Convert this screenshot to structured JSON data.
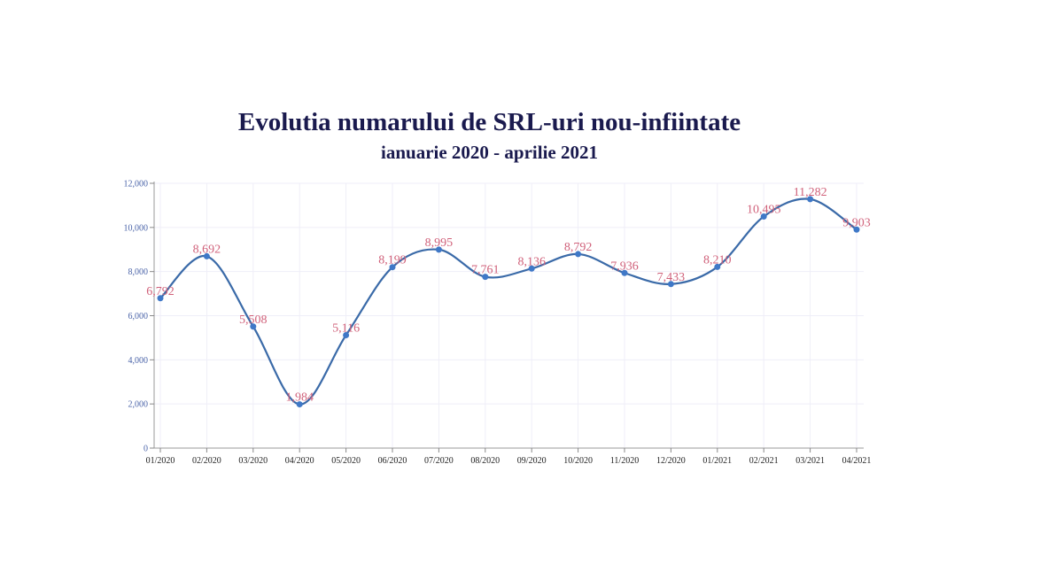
{
  "chart_data": {
    "type": "line",
    "title": "Evolutia numarului de SRL-uri nou-infiintate",
    "subtitle": "ianuarie 2020 - aprilie 2021",
    "xlabel": "",
    "ylabel": "",
    "categories": [
      "01/2020",
      "02/2020",
      "03/2020",
      "04/2020",
      "05/2020",
      "06/2020",
      "07/2020",
      "08/2020",
      "09/2020",
      "10/2020",
      "11/2020",
      "12/2020",
      "01/2021",
      "02/2021",
      "03/2021",
      "04/2021"
    ],
    "series": [
      {
        "name": "SRL-uri nou-infiintate",
        "values": [
          6792,
          8692,
          5508,
          1984,
          5116,
          8199,
          8995,
          7761,
          8136,
          8792,
          7936,
          7433,
          8210,
          10495,
          11282,
          9903
        ]
      }
    ],
    "data_labels": [
      "6,792",
      "8,692",
      "5,508",
      "1,984",
      "5,116",
      "8,199",
      "8,995",
      "7,761",
      "8,136",
      "8,792",
      "7,936",
      "7,433",
      "8,210",
      "10,495",
      "11,282",
      "9,903"
    ],
    "ylim": [
      0,
      12000
    ],
    "yticks": [
      "0",
      "2,000",
      "4,000",
      "6,000",
      "8,000",
      "10,000",
      "12,000"
    ],
    "grid": true,
    "legend": "none",
    "colors": {
      "line": "#3a6aa8",
      "marker": "#3f78c7",
      "label": "#d0617a",
      "title": "#1a1a4e",
      "ytick": "#4a63a8",
      "grid": "#efeef8"
    }
  }
}
